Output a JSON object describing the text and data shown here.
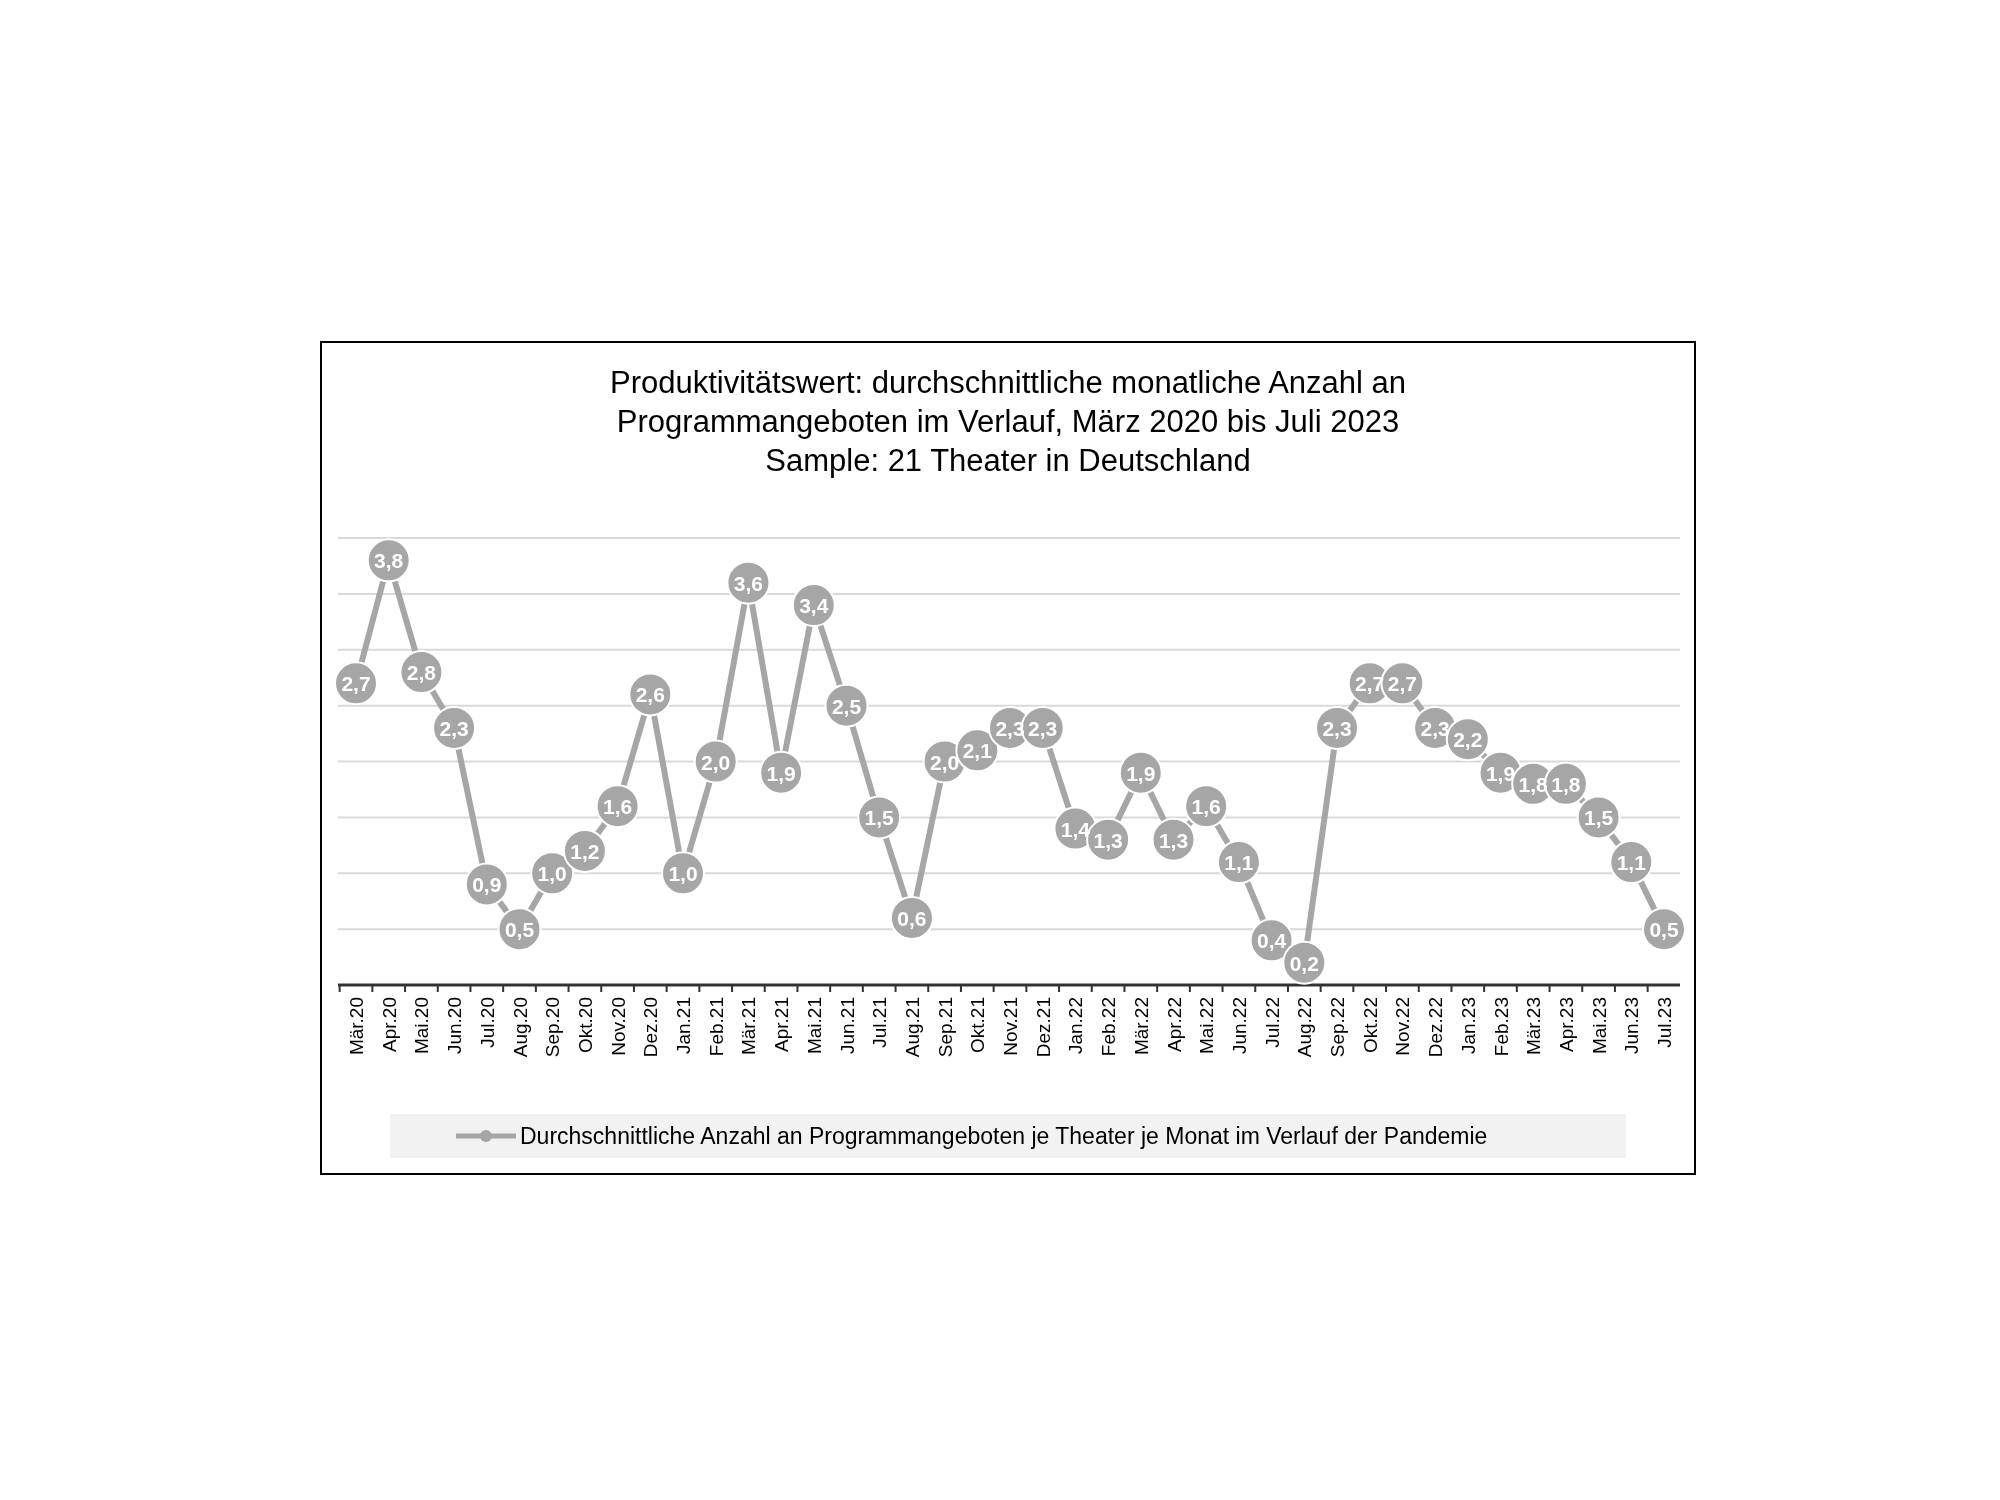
{
  "chart_data": {
    "type": "line",
    "title": "Produktivitätswert: durchschnittliche monatliche Anzahl an\nProgrammangeboten im Verlauf, März 2020 bis Juli 2023\nSample: 21 Theater in Deutschland",
    "categories": [
      "Mär.20",
      "Apr.20",
      "Mai.20",
      "Jun.20",
      "Jul.20",
      "Aug.20",
      "Sep.20",
      "Okt.20",
      "Nov.20",
      "Dez.20",
      "Jan.21",
      "Feb.21",
      "Mär.21",
      "Apr.21",
      "Mai.21",
      "Jun.21",
      "Jul.21",
      "Aug.21",
      "Sep.21",
      "Okt.21",
      "Nov.21",
      "Dez.21",
      "Jan.22",
      "Feb.22",
      "Mär.22",
      "Apr.22",
      "Mai.22",
      "Jun.22",
      "Jul.22",
      "Aug.22",
      "Sep.22",
      "Okt.22",
      "Nov.22",
      "Dez.22",
      "Jan.23",
      "Feb.23",
      "Mär.23",
      "Apr.23",
      "Mai.23",
      "Jun.23",
      "Jul.23"
    ],
    "series": [
      {
        "name": "Durchschnittliche Anzahl an Programmangeboten je Theater je Monat im Verlauf der Pandemie",
        "color": "#a6a6a6",
        "values": [
          2.7,
          3.8,
          2.8,
          2.3,
          0.9,
          0.5,
          1.0,
          1.2,
          1.6,
          2.6,
          1.0,
          2.0,
          3.6,
          1.9,
          3.4,
          2.5,
          1.5,
          0.6,
          2.0,
          2.1,
          2.3,
          2.3,
          1.4,
          1.3,
          1.9,
          1.3,
          1.6,
          1.1,
          0.4,
          0.2,
          2.3,
          2.7,
          2.7,
          2.3,
          2.2,
          1.9,
          1.8,
          1.8,
          1.5,
          1.1,
          0.5
        ],
        "value_labels": [
          "2,7",
          "3,8",
          "2,8",
          "2,3",
          "0,9",
          "0,5",
          "1,0",
          "1,2",
          "1,6",
          "2,6",
          "1,0",
          "2,0",
          "3,6",
          "1,9",
          "3,4",
          "2,5",
          "1,5",
          "0,6",
          "2,0",
          "2,1",
          "2,3",
          "2,3",
          "1,4",
          "1,3",
          "1,9",
          "1,3",
          "1,6",
          "1,1",
          "0,4",
          "0,2",
          "2,3",
          "2,7",
          "2,7",
          "2,3",
          "2,2",
          "1,9",
          "1,8",
          "1,8",
          "1,5",
          "1,1",
          "0,5"
        ]
      }
    ],
    "ylim": [
      0,
      4
    ],
    "yticks": [
      {
        "value": 0,
        "label": null
      },
      {
        "value": 0.5,
        "label": null
      },
      {
        "value": 1,
        "label": null
      },
      {
        "value": 1.5,
        "label": null
      },
      {
        "value": 2,
        "label": null
      },
      {
        "value": 2.5,
        "label": null
      },
      {
        "value": 3,
        "label": null
      },
      {
        "value": 3.5,
        "label": null
      },
      {
        "value": 4,
        "label": null
      }
    ],
    "tick_labels": "x",
    "grid": "y",
    "legend": "bottom",
    "marker": "circle",
    "line_style": "solid"
  }
}
